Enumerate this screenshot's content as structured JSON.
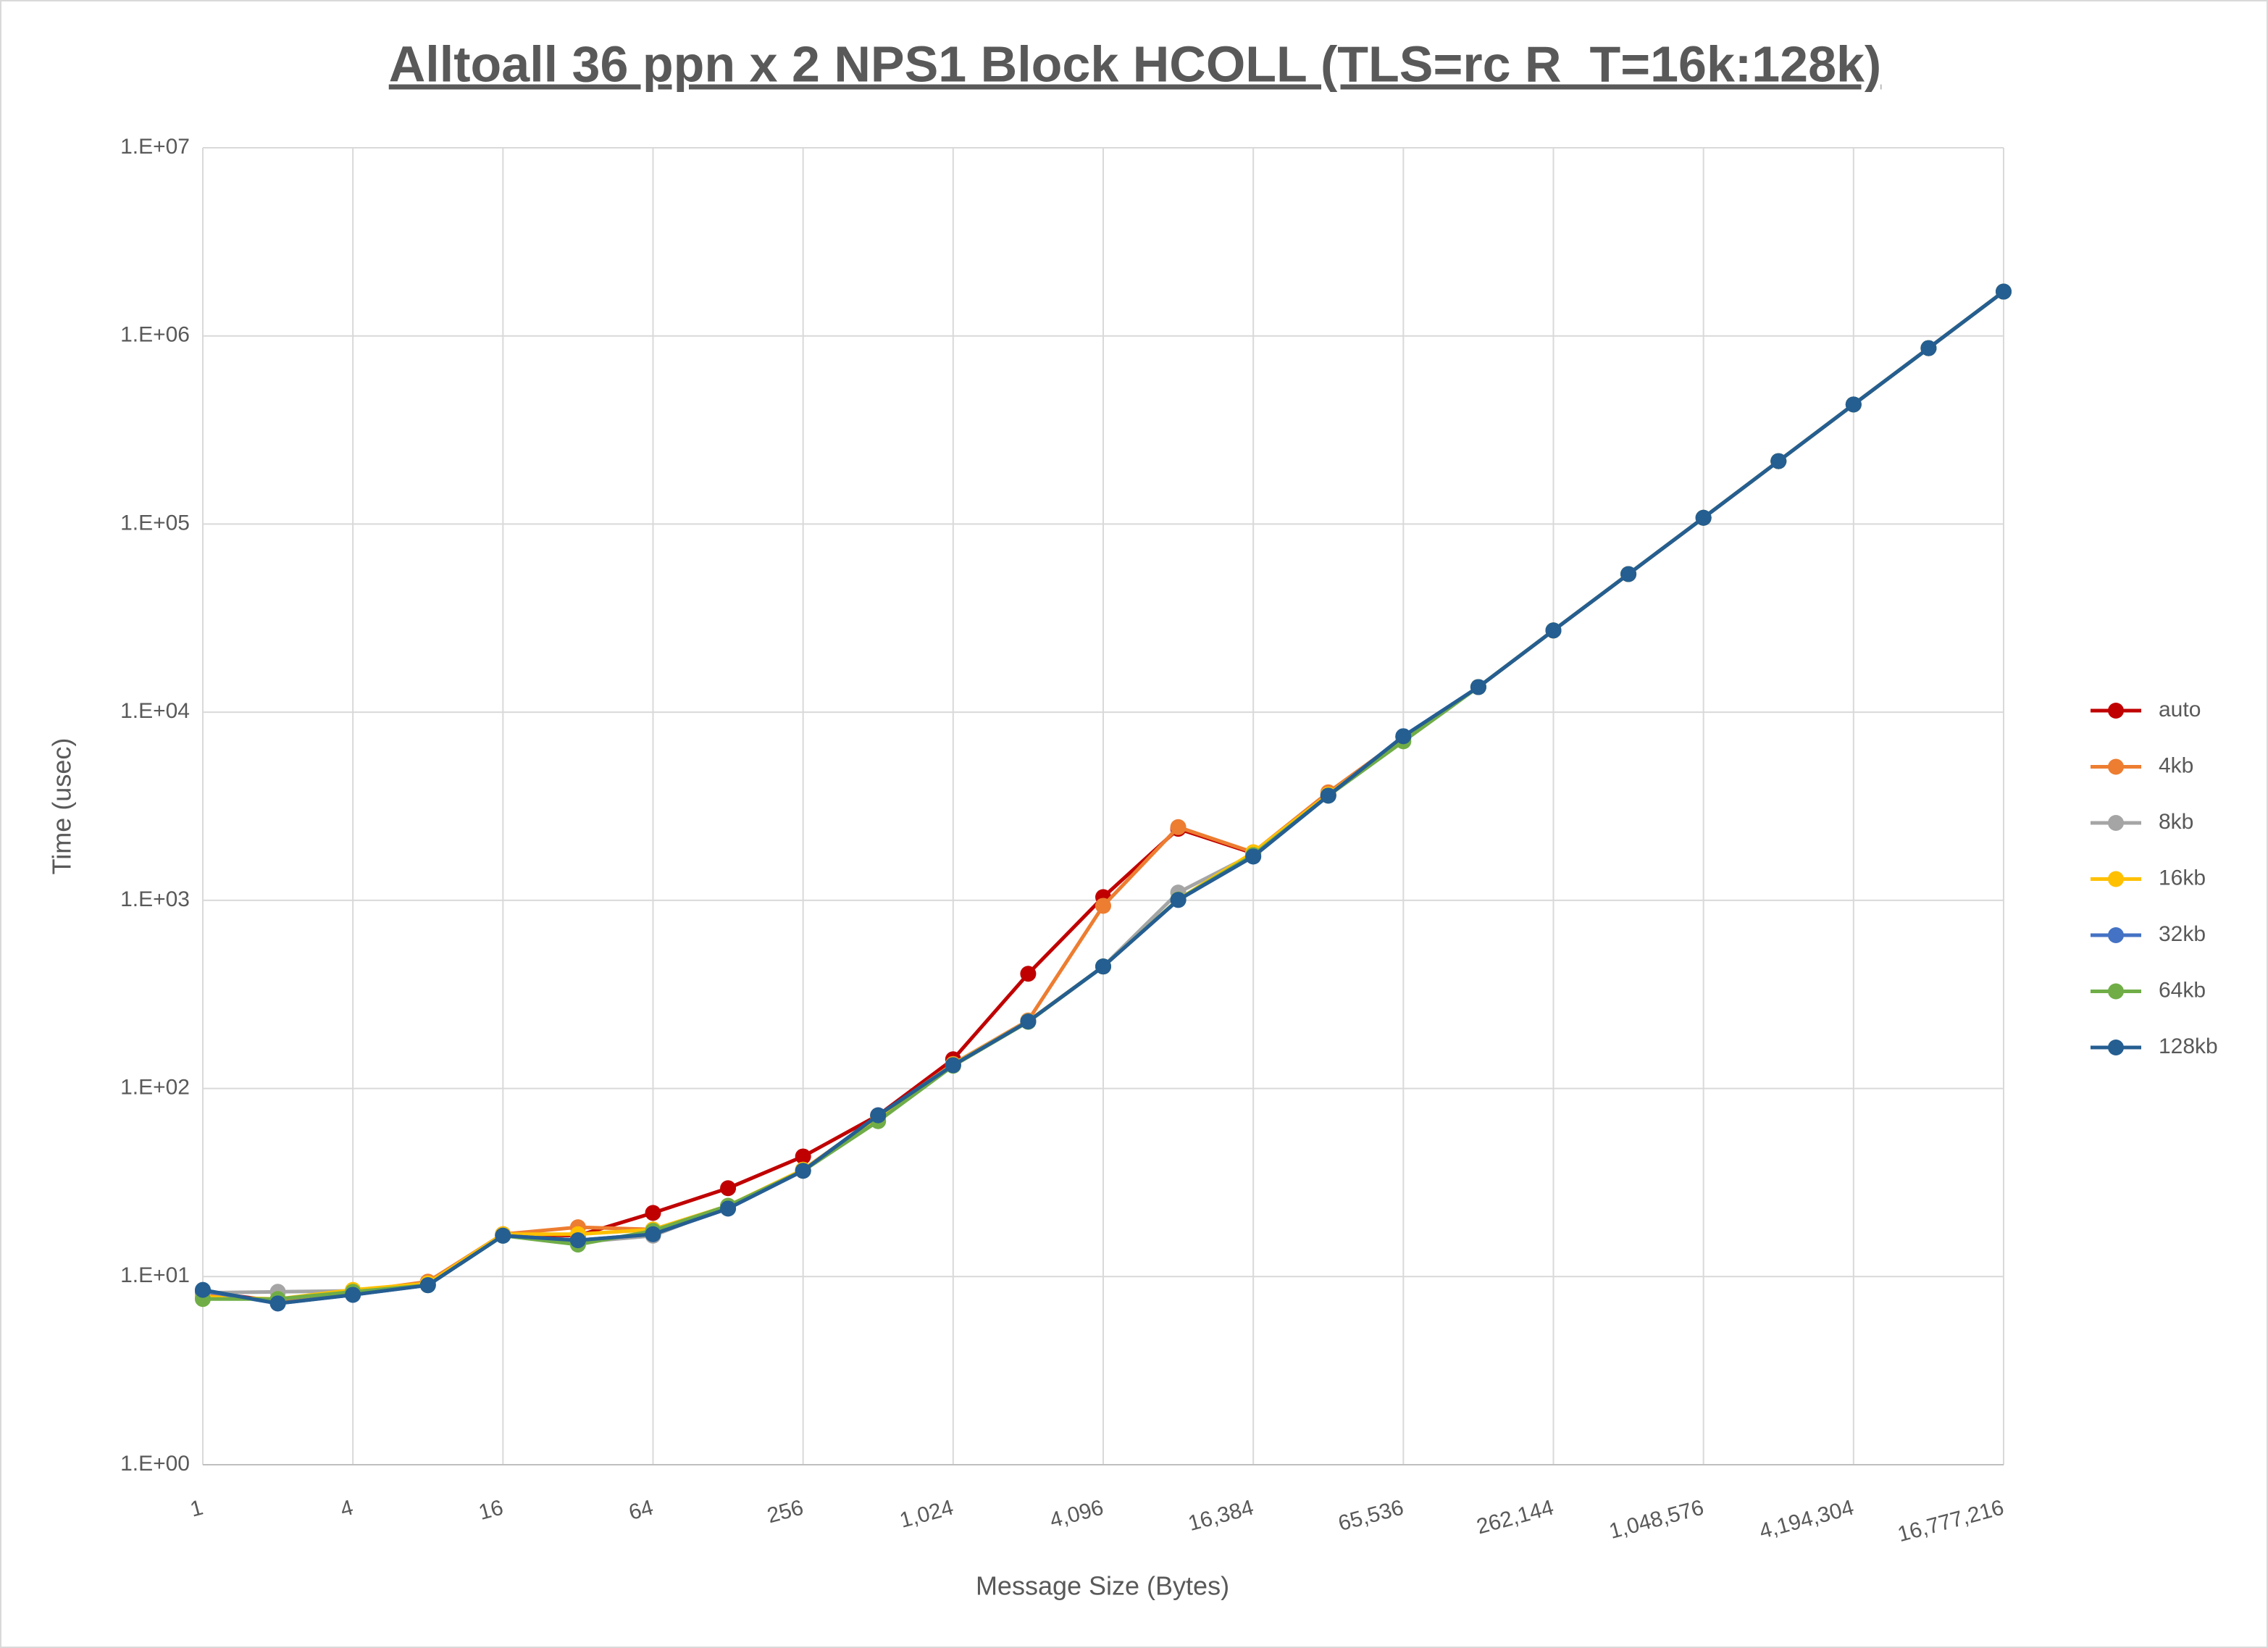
{
  "chart_data": {
    "type": "line",
    "title": "Alltoall 36 ppn x 2 NPS1 Block HCOLL (TLS=rc R_T=16k:128k)",
    "x_label": "Message Size (Bytes)",
    "y_label": "Time (usec)",
    "xscale": "log",
    "yscale": "log",
    "grid": true,
    "legend": "right",
    "x": [
      1,
      2,
      4,
      8,
      16,
      32,
      64,
      128,
      256,
      512,
      1024,
      2048,
      4096,
      8192,
      16384,
      32768,
      65536,
      131072,
      262144,
      524288,
      1048576,
      2097152,
      4194304,
      8388608,
      16777216
    ],
    "xlim": [
      1,
      16777216
    ],
    "xticks": [
      1,
      4,
      16,
      64,
      256,
      {
        "value": 1024,
        "label": "1,024"
      },
      {
        "value": 4096,
        "label": "4,096"
      },
      {
        "value": 16384,
        "label": "16,384"
      },
      {
        "value": 65536,
        "label": "65,536"
      },
      {
        "value": 262144,
        "label": "262,144"
      },
      {
        "value": 1048576,
        "label": "1,048,576"
      },
      {
        "value": 4194304,
        "label": "4,194,304"
      },
      {
        "value": 16777216,
        "label": "16,777,216"
      }
    ],
    "ylim": [
      1,
      10000000
    ],
    "yticks": [
      {
        "value": 1,
        "label": "1.E+00"
      },
      {
        "value": 10,
        "label": "1.E+01"
      },
      {
        "value": 100,
        "label": "1.E+02"
      },
      {
        "value": 1000,
        "label": "1.E+03"
      },
      {
        "value": 10000,
        "label": "1.E+04"
      },
      {
        "value": 100000,
        "label": "1.E+05"
      },
      {
        "value": 1000000,
        "label": "1.E+06"
      },
      {
        "value": 10000000,
        "label": "1.E+07"
      }
    ],
    "series": [
      {
        "name": "auto",
        "color": "#c00000",
        "values": [
          8.3,
          7.4,
          8.2,
          9.3,
          16.8,
          16.5,
          21.8,
          29.5,
          43.5,
          72,
          143,
          407,
          1040,
          2400,
          1780,
          3650,
          7400,
          13600,
          27200,
          54200,
          108000,
          216000,
          432000,
          861000,
          1720000
        ]
      },
      {
        "name": "4kb",
        "color": "#ed7d31",
        "values": [
          8.0,
          7.5,
          8.3,
          9.4,
          16.8,
          18.3,
          17.8,
          23.5,
          37,
          71,
          135,
          230,
          935,
          2450,
          1800,
          3750,
          7300,
          13600,
          27200,
          54200,
          108000,
          216000,
          432000,
          861000,
          1720000
        ]
      },
      {
        "name": "8kb",
        "color": "#a5a5a5",
        "values": [
          8.2,
          8.3,
          8.4,
          9.1,
          16.5,
          15.2,
          16.5,
          23.5,
          36.5,
          71,
          134,
          228,
          445,
          1100,
          1760,
          3620,
          7400,
          13600,
          27200,
          54200,
          108000,
          216000,
          432000,
          861000,
          1720000
        ]
      },
      {
        "name": "16kb",
        "color": "#ffc000",
        "values": [
          7.8,
          7.6,
          8.5,
          9.2,
          16.8,
          16.8,
          17.8,
          23.8,
          37,
          70,
          134,
          228,
          445,
          1010,
          1800,
          3650,
          7300,
          13600,
          27200,
          54200,
          108000,
          216000,
          432000,
          861000,
          1720000
        ]
      },
      {
        "name": "32kb",
        "color": "#4472c4",
        "values": [
          8.4,
          7.2,
          8.0,
          9.0,
          16.5,
          15.6,
          16.8,
          23,
          36.5,
          72,
          133,
          227,
          445,
          1005,
          1710,
          3600,
          7450,
          13600,
          27200,
          54200,
          108000,
          216000,
          432000,
          861000,
          1720000
        ]
      },
      {
        "name": "64kb",
        "color": "#70ad47",
        "values": [
          7.6,
          7.6,
          8.3,
          9.0,
          16.5,
          14.8,
          17.5,
          23.8,
          36.5,
          67,
          132,
          226,
          445,
          1010,
          1740,
          3600,
          7000,
          13600,
          27200,
          54200,
          108000,
          216000,
          432000,
          861000,
          1720000
        ]
      },
      {
        "name": "128kb",
        "color": "#255e91",
        "values": [
          8.5,
          7.2,
          8.0,
          9.0,
          16.5,
          15.6,
          16.8,
          23,
          36.5,
          72,
          133,
          227,
          445,
          1005,
          1710,
          3600,
          7450,
          13600,
          27200,
          54200,
          108000,
          216000,
          432000,
          861000,
          1720000
        ]
      }
    ]
  }
}
